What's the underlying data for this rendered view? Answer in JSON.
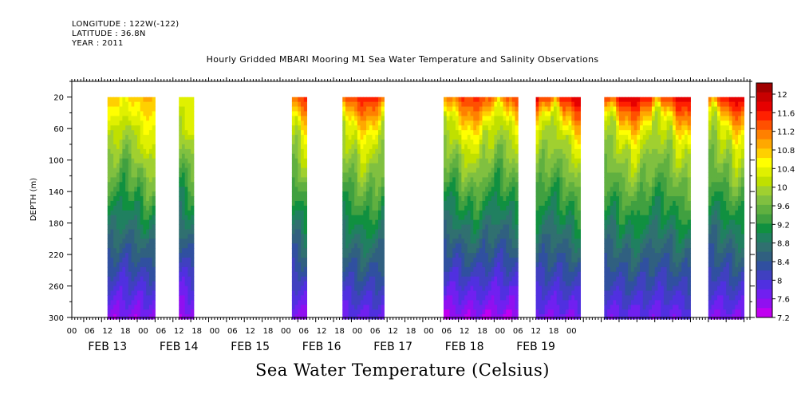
{
  "header": {
    "longitude": "LONGITUDE : 122W(-122)",
    "latitude": "LATITUDE : 36.8N",
    "year": "YEAR : 2011"
  },
  "chart_data": {
    "type": "heatmap",
    "title": "Hourly Gridded MBARI Mooring M1 Sea Water Temperature and Salinity Observations",
    "bottom_title": "Sea Water Temperature (Celsius)",
    "ylabel": "DEPTH (m)",
    "ylim": [
      300,
      0
    ],
    "y_ticks": [
      "20",
      "60",
      "100",
      "140",
      "180",
      "220",
      "260",
      "300"
    ],
    "x_hour_labels": [
      "00",
      "06",
      "12",
      "18",
      "00",
      "06",
      "12",
      "18",
      "00",
      "06",
      "12",
      "18",
      "00",
      "06",
      "12",
      "18",
      "00",
      "06",
      "12",
      "18",
      "00",
      "06",
      "12",
      "18",
      "00",
      "06",
      "12",
      "18",
      "00"
    ],
    "x_date_labels": [
      "FEB 13",
      "FEB 14",
      "FEB 15",
      "FEB 16",
      "FEB 17",
      "FEB 18",
      "FEB 19"
    ],
    "data_segments": [
      {
        "start_hour": 8,
        "end_hour": 24,
        "surface_temp": 11.0,
        "deep_temp": 7.5
      },
      {
        "start_hour": 32,
        "end_hour": 37,
        "surface_temp": 10.4,
        "deep_temp": 7.4
      },
      {
        "start_hour": 70,
        "end_hour": 75,
        "surface_temp": 11.8,
        "deep_temp": 7.5
      },
      {
        "start_hour": 87,
        "end_hour": 101,
        "surface_temp": 11.9,
        "deep_temp": 7.7
      },
      {
        "start_hour": 121,
        "end_hour": 146,
        "surface_temp": 11.8,
        "deep_temp": 7.4
      },
      {
        "start_hour": 152,
        "end_hour": 167,
        "surface_temp": 12.2,
        "deep_temp": 7.6
      },
      {
        "start_hour": 175,
        "end_hour": 204,
        "surface_temp": 12.2,
        "deep_temp": 7.7
      },
      {
        "start_hour": 210,
        "end_hour": 222,
        "surface_temp": 12.2,
        "deep_temp": 7.6
      }
    ],
    "colorbar": {
      "labels": [
        "12",
        "11.6",
        "11.2",
        "10.8",
        "10.4",
        "10",
        "9.6",
        "9.2",
        "8.8",
        "8.4",
        "8",
        "7.6",
        "7.2"
      ],
      "colors": [
        "#a00000",
        "#c80000",
        "#e60000",
        "#ff2000",
        "#ff5000",
        "#ff8000",
        "#ffa800",
        "#ffd000",
        "#ffff00",
        "#e0f000",
        "#c0e000",
        "#a0d030",
        "#80c040",
        "#60b040",
        "#40a040",
        "#109040",
        "#208060",
        "#307070",
        "#306080",
        "#3050a0",
        "#4040c0",
        "#5030e0",
        "#7020f0",
        "#9010f0",
        "#c000f0"
      ]
    }
  }
}
